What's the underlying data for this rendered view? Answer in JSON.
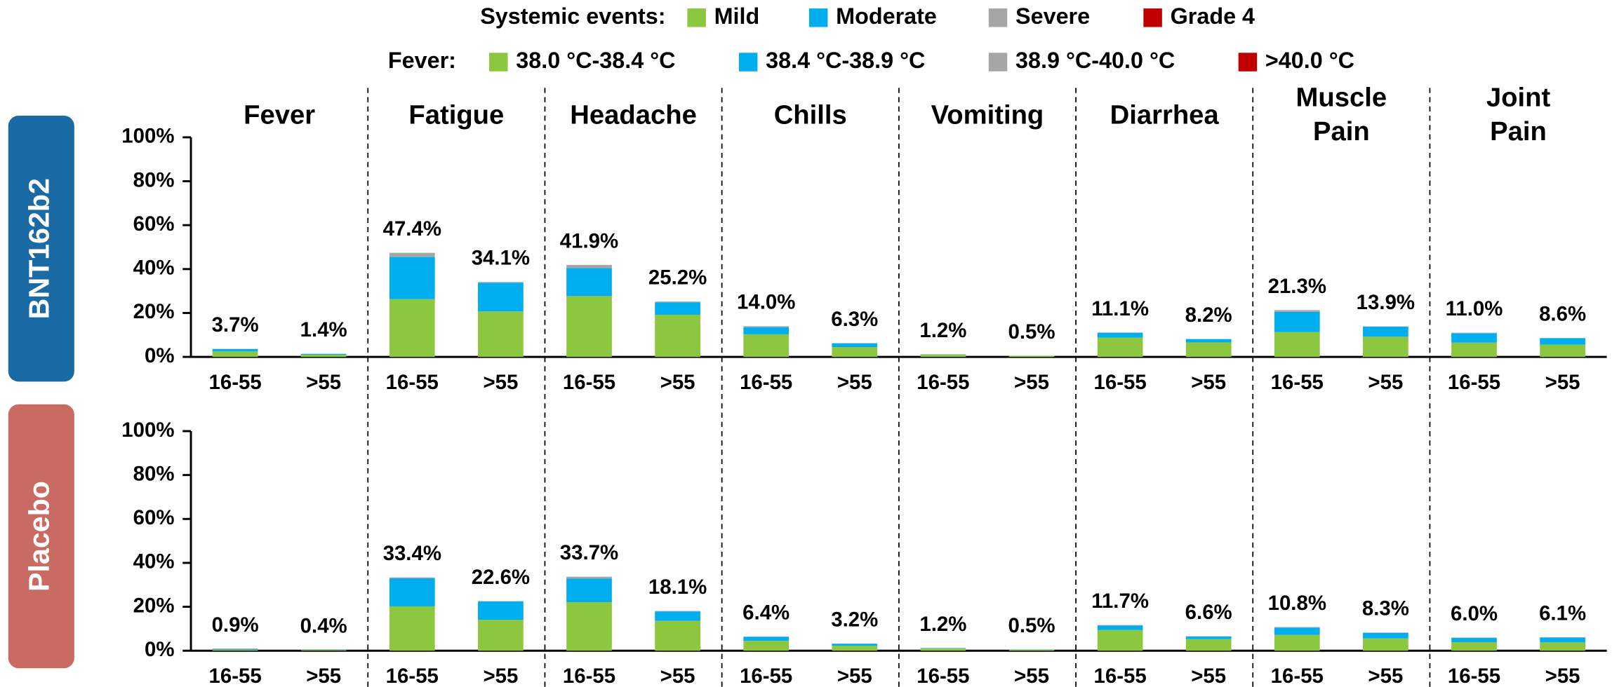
{
  "chart_data": {
    "type": "bar",
    "stacked": true,
    "legend_title": "Systemic events:",
    "fever_legend": {
      "title": "Fever:",
      "labels": [
        "38.0 °C-38.4 °C",
        "38.4 °C-38.9 °C",
        "38.9 °C-40.0 °C",
        ">40.0 °C"
      ]
    },
    "series": [
      {
        "name": "Mild",
        "color": "#8dc63f"
      },
      {
        "name": "Moderate",
        "color": "#00aeef"
      },
      {
        "name": "Severe",
        "color": "#a6a6a6"
      },
      {
        "name": "Grade 4",
        "color": "#c00000"
      }
    ],
    "groups": [
      "Fever",
      "Fatigue",
      "Headache",
      "Chills",
      "Vomiting",
      "Diarrhea",
      "Muscle Pain",
      "Joint Pain"
    ],
    "categories": [
      "16-55",
      ">55",
      "16-55",
      ">55",
      "16-55",
      ">55",
      "16-55",
      ">55",
      "16-55",
      ">55",
      "16-55",
      ">55",
      "16-55",
      ">55",
      "16-55",
      ">55"
    ],
    "ylim": [
      0,
      100
    ],
    "yticks": [
      {
        "value": 0,
        "label": "0%"
      },
      {
        "value": 20,
        "label": "20%"
      },
      {
        "value": 40,
        "label": "40%"
      },
      {
        "value": 60,
        "label": "60%"
      },
      {
        "value": 80,
        "label": "80%"
      },
      {
        "value": 100,
        "label": "100%"
      }
    ],
    "panels": [
      {
        "label": "BNT162b2",
        "color": "#1a6aa5",
        "series": [
          {
            "values": [
              2.5,
              1.0,
              26.3,
              20.7,
              27.7,
              19.2,
              10.3,
              4.5,
              1.1,
              0.5,
              8.8,
              6.6,
              11.3,
              9.2,
              6.5,
              5.6
            ]
          },
          {
            "values": [
              1.1,
              0.4,
              19.2,
              13.1,
              12.7,
              5.6,
              3.2,
              1.7,
              0.1,
              0,
              2.2,
              1.5,
              9.2,
              4.6,
              4.3,
              2.9
            ]
          },
          {
            "values": [
              0.1,
              0,
              1.9,
              0.3,
              1.5,
              0.4,
              0.5,
              0.1,
              0,
              0,
              0.1,
              0.1,
              0.8,
              0.1,
              0.2,
              0.1
            ]
          },
          {
            "values": [
              0,
              0,
              0,
              0,
              0,
              0,
              0,
              0,
              0,
              0,
              0,
              0,
              0,
              0,
              0,
              0
            ]
          }
        ],
        "totals": [
          3.7,
          1.4,
          47.4,
          34.1,
          41.9,
          25.2,
          14.0,
          6.3,
          1.2,
          0.5,
          11.1,
          8.2,
          21.3,
          13.9,
          11.0,
          8.6
        ],
        "total_labels": [
          "3.7%",
          "1.4%",
          "47.4%",
          "34.1%",
          "41.9%",
          "25.2%",
          "14.0%",
          "6.3%",
          "1.2%",
          "0.5%",
          "11.1%",
          "8.2%",
          "21.3%",
          "13.9%",
          "11.0%",
          "8.6%"
        ]
      },
      {
        "label": "Placebo",
        "color": "#c96a63",
        "series": [
          {
            "values": [
              0.4,
              0.3,
              20.2,
              14.1,
              22.1,
              13.6,
              4.5,
              2.3,
              1.0,
              0.4,
              9.4,
              5.3,
              7.2,
              5.6,
              3.9,
              3.8
            ]
          },
          {
            "values": [
              0.3,
              0.1,
              12.8,
              8.3,
              10.8,
              4.3,
              1.8,
              0.9,
              0.2,
              0.1,
              2.0,
              1.2,
              3.3,
              2.5,
              1.9,
              2.2
            ]
          },
          {
            "values": [
              0.1,
              0,
              0.4,
              0.2,
              0.8,
              0.2,
              0.1,
              0,
              0,
              0,
              0.3,
              0.1,
              0.3,
              0.2,
              0.2,
              0.1
            ]
          },
          {
            "values": [
              0.1,
              0,
              0,
              0,
              0,
              0,
              0,
              0,
              0,
              0,
              0,
              0,
              0,
              0,
              0,
              0
            ]
          }
        ],
        "totals": [
          0.9,
          0.4,
          33.4,
          22.6,
          33.7,
          18.1,
          6.4,
          3.2,
          1.2,
          0.5,
          11.7,
          6.6,
          10.8,
          8.3,
          6.0,
          6.1
        ],
        "total_labels": [
          "0.9%",
          "0.4%",
          "33.4%",
          "22.6%",
          "33.7%",
          "18.1%",
          "6.4%",
          "3.2%",
          "1.2%",
          "0.5%",
          "11.7%",
          "6.6%",
          "10.8%",
          "8.3%",
          "6.0%",
          "6.1%"
        ]
      }
    ]
  }
}
